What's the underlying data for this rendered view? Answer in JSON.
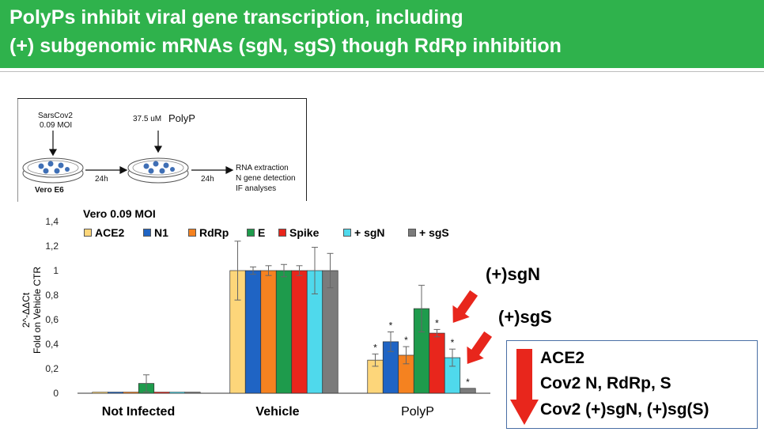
{
  "title": {
    "line1": "PolyPs inhibit viral gene transcription, including",
    "line2": "(+) subgenomic mRNAs (sgN, sgS) though RdRp inhibition"
  },
  "colors": {
    "title_bar": "#2fb24c",
    "arrow_red": "#e8261c",
    "summary_border": "#4a6fa5"
  },
  "schematic": {
    "virus_line1": "SarsCov2",
    "virus_line2": "0.09 MOI",
    "treatment_prefix": "37.5 uM",
    "treatment_word": "PolyP",
    "cell_label": "Vero E6",
    "time1": "24h",
    "time2": "24h",
    "steps": [
      "RNA extraction",
      "N gene detection",
      "IF analyses"
    ]
  },
  "chart_data": {
    "type": "bar",
    "title": "Vero 0.09 MOI",
    "ylabel_line1": "2^-ΔΔCt",
    "ylabel_line2": "Fold on Vehicle CTR",
    "ylim": [
      0,
      1.4
    ],
    "yticks": [
      "0",
      "0,2",
      "0,4",
      "0,6",
      "0,8",
      "1",
      "1,2",
      "1,4"
    ],
    "categories": [
      "Not Infected",
      "Vehicle",
      "PolyP"
    ],
    "legend_placement": "top",
    "series": [
      {
        "name": "ACE2",
        "color": "#fdd67a",
        "values": [
          0.0,
          1.0,
          0.27
        ],
        "errors": [
          0.0,
          0.24,
          0.05
        ],
        "significant": [
          false,
          false,
          true
        ]
      },
      {
        "name": "N1",
        "color": "#1f64c4",
        "values": [
          0.0,
          1.0,
          0.42
        ],
        "errors": [
          0.0,
          0.03,
          0.08
        ],
        "significant": [
          false,
          false,
          true
        ]
      },
      {
        "name": "RdRp",
        "color": "#f58220",
        "values": [
          0.0,
          1.0,
          0.31
        ],
        "errors": [
          0.0,
          0.04,
          0.07
        ],
        "significant": [
          false,
          false,
          true
        ]
      },
      {
        "name": "E",
        "color": "#1e9b4c",
        "values": [
          0.08,
          1.0,
          0.69
        ],
        "errors": [
          0.07,
          0.05,
          0.19
        ],
        "significant": [
          false,
          false,
          false
        ]
      },
      {
        "name": "Spike",
        "color": "#e8261c",
        "values": [
          0.0,
          1.0,
          0.49
        ],
        "errors": [
          0.0,
          0.04,
          0.03
        ],
        "significant": [
          false,
          false,
          true
        ]
      },
      {
        "name": "+ sgN",
        "color": "#4fd9ec",
        "values": [
          0.0,
          1.0,
          0.29
        ],
        "errors": [
          0.0,
          0.19,
          0.07
        ],
        "significant": [
          false,
          false,
          true
        ]
      },
      {
        "name": "+ sgS",
        "color": "#7b7b7b",
        "values": [
          0.0,
          1.0,
          0.04
        ],
        "errors": [
          0.0,
          0.14,
          0.0
        ],
        "significant": [
          false,
          false,
          true
        ]
      }
    ],
    "significance_marker": "*"
  },
  "annotations": {
    "sgN_label": "(+)sgN",
    "sgS_label": "(+)sgS"
  },
  "summary": {
    "lines": [
      "ACE2",
      "Cov2 N, RdRp, S",
      "Cov2 (+)sgN, (+)sg(S)"
    ]
  }
}
